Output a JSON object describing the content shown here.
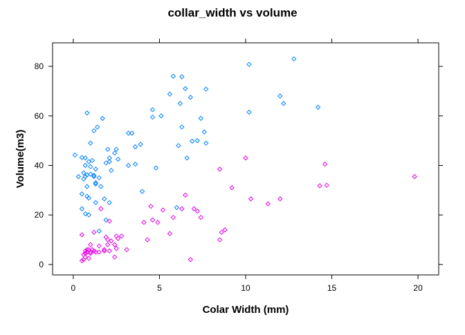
{
  "chart_data": {
    "type": "scatter",
    "title": "collar_width vs volume",
    "xlabel": "Colar Width (mm)",
    "ylabel": "Volume(m3)",
    "xlim": [
      -1.2,
      21.2
    ],
    "ylim": [
      -4.2,
      89.5
    ],
    "x_ticks": [
      0,
      5,
      10,
      15,
      20
    ],
    "y_ticks": [
      0,
      20,
      40,
      60,
      80
    ],
    "grid": false,
    "legend": "none",
    "marker": "open-diamond",
    "series": [
      {
        "color": "#0080ff",
        "points": [
          [
            0.1,
            44.2
          ],
          [
            0.3,
            35.5
          ],
          [
            0.5,
            43.2
          ],
          [
            0.5,
            28.5
          ],
          [
            0.5,
            22.5
          ],
          [
            0.6,
            34.5
          ],
          [
            0.6,
            37.0
          ],
          [
            0.7,
            43.0
          ],
          [
            0.7,
            40.0
          ],
          [
            0.7,
            35.5
          ],
          [
            0.7,
            20.5
          ],
          [
            0.8,
            61.2
          ],
          [
            0.8,
            36.2
          ],
          [
            0.8,
            31.5
          ],
          [
            0.8,
            27.5
          ],
          [
            0.9,
            26.8
          ],
          [
            0.9,
            20.0
          ],
          [
            0.9,
            41.5
          ],
          [
            1.0,
            49.0
          ],
          [
            1.0,
            36.5
          ],
          [
            1.0,
            39.5
          ],
          [
            1.1,
            42.0
          ],
          [
            1.2,
            36.0
          ],
          [
            1.2,
            35.5
          ],
          [
            1.2,
            54.0
          ],
          [
            1.3,
            38.5
          ],
          [
            1.3,
            33.0
          ],
          [
            1.3,
            32.5
          ],
          [
            1.3,
            25.0
          ],
          [
            1.4,
            55.5
          ],
          [
            1.5,
            35.0
          ],
          [
            1.5,
            13.5
          ],
          [
            1.6,
            31.5
          ],
          [
            1.7,
            59.0
          ],
          [
            1.8,
            26.5
          ],
          [
            1.9,
            41.0
          ],
          [
            1.9,
            18.0
          ],
          [
            2.0,
            46.5
          ],
          [
            2.1,
            43.0
          ],
          [
            2.1,
            41.5
          ],
          [
            2.1,
            25.0
          ],
          [
            2.2,
            38.0
          ],
          [
            2.4,
            45.0
          ],
          [
            2.5,
            46.5
          ],
          [
            2.6,
            42.5
          ],
          [
            3.2,
            53.0
          ],
          [
            3.2,
            40.0
          ],
          [
            3.4,
            53.0
          ],
          [
            3.6,
            40.5
          ],
          [
            3.6,
            47.5
          ],
          [
            3.9,
            48.5
          ],
          [
            4.0,
            29.5
          ],
          [
            4.6,
            62.5
          ],
          [
            4.6,
            59.5
          ],
          [
            4.8,
            39.0
          ],
          [
            5.1,
            60.0
          ],
          [
            5.6,
            68.8
          ],
          [
            5.8,
            76.0
          ],
          [
            6.0,
            23.0
          ],
          [
            6.1,
            48.0
          ],
          [
            6.2,
            65.0
          ],
          [
            6.3,
            75.8
          ],
          [
            6.3,
            55.5
          ],
          [
            6.5,
            71.0
          ],
          [
            6.6,
            43.0
          ],
          [
            6.8,
            67.5
          ],
          [
            6.9,
            49.8
          ],
          [
            7.2,
            50.0
          ],
          [
            7.4,
            59.0
          ],
          [
            7.6,
            53.5
          ],
          [
            7.7,
            49.0
          ],
          [
            7.7,
            70.8
          ],
          [
            10.2,
            80.8
          ],
          [
            10.2,
            61.5
          ],
          [
            12.0,
            68.0
          ],
          [
            12.2,
            65.0
          ],
          [
            12.8,
            83.0
          ],
          [
            14.2,
            63.5
          ]
        ]
      },
      {
        "color": "#e600e6",
        "points": [
          [
            0.5,
            12.0
          ],
          [
            0.5,
            1.5
          ],
          [
            0.6,
            2.0
          ],
          [
            0.6,
            4.0
          ],
          [
            0.7,
            3.0
          ],
          [
            0.7,
            5.5
          ],
          [
            0.7,
            4.5
          ],
          [
            0.8,
            5.0
          ],
          [
            0.8,
            6.0
          ],
          [
            0.9,
            2.5
          ],
          [
            0.9,
            6.0
          ],
          [
            1.0,
            4.5
          ],
          [
            1.0,
            5.0
          ],
          [
            1.0,
            8.0
          ],
          [
            1.1,
            6.0
          ],
          [
            1.2,
            5.5
          ],
          [
            1.2,
            13.0
          ],
          [
            1.3,
            5.0
          ],
          [
            1.5,
            5.0
          ],
          [
            1.5,
            7.5
          ],
          [
            1.6,
            22.5
          ],
          [
            1.8,
            5.5
          ],
          [
            1.8,
            6.0
          ],
          [
            1.9,
            11.0
          ],
          [
            2.0,
            10.0
          ],
          [
            2.0,
            8.0
          ],
          [
            2.1,
            5.5
          ],
          [
            2.1,
            17.5
          ],
          [
            2.2,
            9.5
          ],
          [
            2.4,
            8.0
          ],
          [
            2.4,
            3.0
          ],
          [
            2.5,
            11.5
          ],
          [
            2.5,
            6.5
          ],
          [
            2.6,
            10.5
          ],
          [
            2.8,
            11.5
          ],
          [
            3.1,
            6.0
          ],
          [
            4.1,
            17.0
          ],
          [
            4.3,
            10.0
          ],
          [
            4.5,
            23.5
          ],
          [
            4.6,
            18.0
          ],
          [
            4.9,
            17.0
          ],
          [
            5.2,
            22.0
          ],
          [
            5.6,
            12.5
          ],
          [
            5.8,
            19.0
          ],
          [
            6.3,
            22.5
          ],
          [
            6.5,
            28.0
          ],
          [
            6.8,
            2.0
          ],
          [
            7.0,
            22.5
          ],
          [
            7.2,
            21.5
          ],
          [
            7.4,
            19.0
          ],
          [
            8.5,
            10.0
          ],
          [
            8.5,
            38.5
          ],
          [
            8.6,
            13.0
          ],
          [
            8.8,
            14.0
          ],
          [
            9.2,
            31.0
          ],
          [
            10.0,
            43.0
          ],
          [
            10.3,
            26.5
          ],
          [
            11.3,
            24.5
          ],
          [
            12.0,
            26.5
          ],
          [
            14.3,
            31.8
          ],
          [
            14.6,
            40.5
          ],
          [
            14.7,
            32.0
          ],
          [
            19.8,
            35.5
          ]
        ]
      }
    ]
  }
}
